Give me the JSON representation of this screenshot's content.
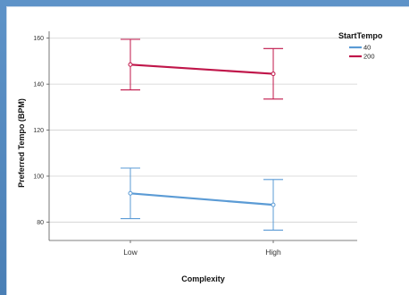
{
  "chart_data": {
    "type": "line",
    "xlabel": "Complexity",
    "ylabel": "Preferred Tempo (BPM)",
    "categories": [
      "Low",
      "High"
    ],
    "ylim": [
      72,
      163
    ],
    "yticks": [
      80,
      100,
      120,
      140,
      160
    ],
    "grid": "horizontal",
    "error_bars": true,
    "legend": {
      "title": "StartTempo",
      "placement": "top-right",
      "entries": [
        "40",
        "200"
      ]
    },
    "series": [
      {
        "name": "40",
        "color": "#5b9bd5",
        "values": [
          92.5,
          87.5
        ],
        "error_low": [
          81.5,
          76.5
        ],
        "error_high": [
          103.5,
          98.5
        ]
      },
      {
        "name": "200",
        "color": "#c0164a",
        "values": [
          148.5,
          144.5
        ],
        "error_low": [
          137.5,
          133.5
        ],
        "error_high": [
          159.5,
          155.5
        ]
      }
    ]
  }
}
